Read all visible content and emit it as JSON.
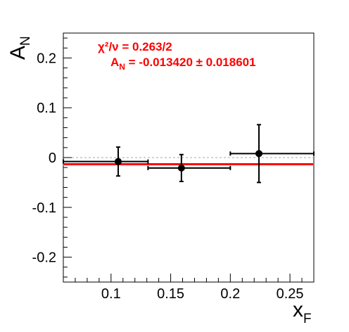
{
  "chart_data": {
    "type": "scatter",
    "xlabel": "x",
    "xlabel_sub": "F",
    "ylabel": "A",
    "ylabel_sub": "N",
    "xlim": [
      0.06,
      0.27
    ],
    "ylim": [
      -0.25,
      0.25
    ],
    "x_ticks": [
      0.1,
      0.15,
      0.2,
      0.25
    ],
    "x_tick_labels": [
      "0.1",
      "0.15",
      "0.2",
      "0.25"
    ],
    "y_ticks": [
      -0.2,
      -0.1,
      0,
      0.1,
      0.2
    ],
    "y_tick_labels": [
      "-0.2",
      "-0.1",
      "0",
      "0.1",
      "0.2"
    ],
    "grid": false,
    "zero_line": true,
    "points": [
      {
        "x": 0.106,
        "y": -0.008,
        "x_lo": 0.06,
        "x_hi": 0.131,
        "y_err": 0.029
      },
      {
        "x": 0.159,
        "y": -0.021,
        "x_lo": 0.131,
        "x_hi": 0.2,
        "y_err": 0.027
      },
      {
        "x": 0.224,
        "y": 0.008,
        "x_lo": 0.2,
        "x_hi": 0.27,
        "y_err": 0.058
      }
    ],
    "fit": {
      "value": -0.01342,
      "color": "#ff0000",
      "chi2_label": "χ²/ν = 0.263/2",
      "an_prefix": "A",
      "an_sub": "N",
      "an_value": " = -0.013420 ± 0.018601"
    }
  }
}
